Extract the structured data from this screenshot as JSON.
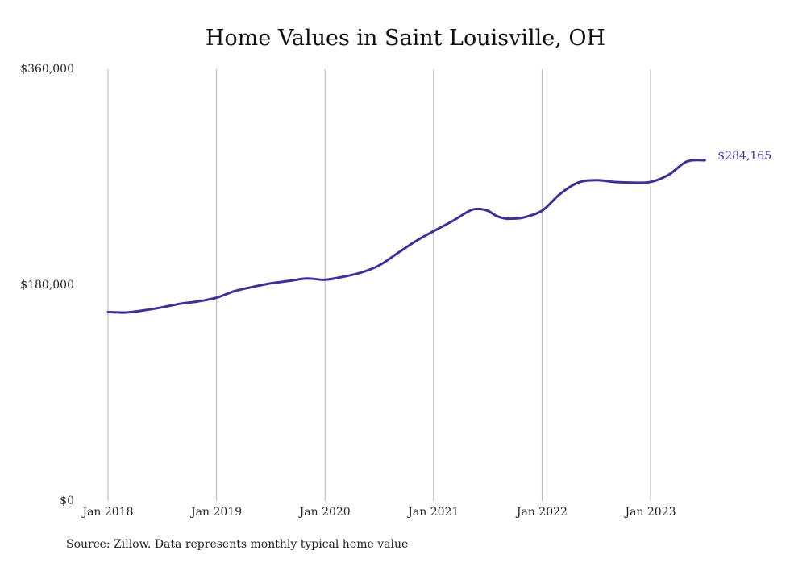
{
  "chart_data": {
    "type": "line",
    "title": "Home Values in Saint Louisville, OH",
    "xlabel": "",
    "ylabel": "",
    "source": "Source: Zillow. Data represents monthly typical home value",
    "ylim": [
      0,
      360000
    ],
    "yticks": [
      {
        "value": 0,
        "label": "$0"
      },
      {
        "value": 180000,
        "label": "$180,000"
      },
      {
        "value": 360000,
        "label": "$360,000"
      }
    ],
    "xticks": [
      {
        "value": "2018-01",
        "label": "Jan 2018"
      },
      {
        "value": "2019-01",
        "label": "Jan 2019"
      },
      {
        "value": "2020-01",
        "label": "Jan 2020"
      },
      {
        "value": "2021-01",
        "label": "Jan 2021"
      },
      {
        "value": "2022-01",
        "label": "Jan 2022"
      },
      {
        "value": "2023-01",
        "label": "Jan 2023"
      }
    ],
    "xlim": [
      "2018-01",
      "2023-07"
    ],
    "grid": {
      "vertical": true,
      "horizontal": false
    },
    "series": [
      {
        "color": "#3b3294",
        "end_label": "$284,165",
        "points": [
          {
            "x": "2018-01",
            "y": 157500
          },
          {
            "x": "2018-03",
            "y": 157200
          },
          {
            "x": "2018-05",
            "y": 159000
          },
          {
            "x": "2018-07",
            "y": 161500
          },
          {
            "x": "2018-09",
            "y": 164500
          },
          {
            "x": "2018-11",
            "y": 166500
          },
          {
            "x": "2019-01",
            "y": 169500
          },
          {
            "x": "2019-03",
            "y": 175000
          },
          {
            "x": "2019-05",
            "y": 178500
          },
          {
            "x": "2019-07",
            "y": 181500
          },
          {
            "x": "2019-09",
            "y": 183500
          },
          {
            "x": "2019-11",
            "y": 185500
          },
          {
            "x": "2020-01",
            "y": 184500
          },
          {
            "x": "2020-03",
            "y": 187000
          },
          {
            "x": "2020-05",
            "y": 190500
          },
          {
            "x": "2020-07",
            "y": 196500
          },
          {
            "x": "2020-09",
            "y": 206500
          },
          {
            "x": "2020-11",
            "y": 216500
          },
          {
            "x": "2021-01",
            "y": 225000
          },
          {
            "x": "2021-03",
            "y": 233000
          },
          {
            "x": "2021-05",
            "y": 242000
          },
          {
            "x": "2021-06",
            "y": 243500
          },
          {
            "x": "2021-07",
            "y": 242000
          },
          {
            "x": "2021-08",
            "y": 237500
          },
          {
            "x": "2021-09",
            "y": 235500
          },
          {
            "x": "2021-10",
            "y": 235500
          },
          {
            "x": "2021-11",
            "y": 236500
          },
          {
            "x": "2022-01",
            "y": 242000
          },
          {
            "x": "2022-03",
            "y": 256000
          },
          {
            "x": "2022-05",
            "y": 265500
          },
          {
            "x": "2022-07",
            "y": 267500
          },
          {
            "x": "2022-09",
            "y": 266000
          },
          {
            "x": "2022-11",
            "y": 265500
          },
          {
            "x": "2023-01",
            "y": 266000
          },
          {
            "x": "2023-03",
            "y": 272000
          },
          {
            "x": "2023-05",
            "y": 283000
          },
          {
            "x": "2023-07",
            "y": 284165
          }
        ]
      }
    ]
  }
}
